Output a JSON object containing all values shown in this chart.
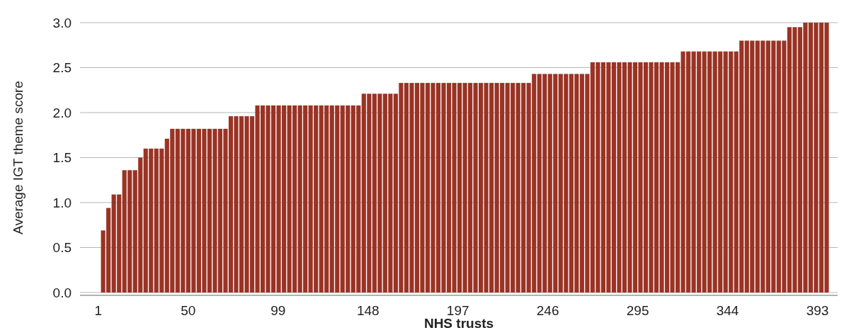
{
  "chart_data": {
    "type": "bar",
    "xlabel": "NHS trusts",
    "ylabel": "Average IGT theme score",
    "color": "#9a3324",
    "x": [
      3.6,
      6.5,
      9.4,
      12.3,
      15.2,
      18.1,
      21,
      23.9,
      26.8,
      29.7,
      32.6,
      35.5,
      38.4,
      41.3,
      44.2,
      47.1,
      50,
      52.9,
      55.8,
      58.7,
      61.6,
      64.5,
      67.4,
      70.3,
      73.2,
      76.1,
      79,
      81.9,
      84.8,
      87.7,
      90.6,
      93.5,
      96.4,
      99.3,
      102.2,
      105.1,
      108,
      110.9,
      113.8,
      116.7,
      119.6,
      122.5,
      125.4,
      128.3,
      131.2,
      134.1,
      137,
      139.9,
      142.8,
      145.7,
      148.6,
      151.5,
      154.4,
      157.3,
      160.2,
      163.1,
      166,
      168.9,
      171.8,
      174.7,
      177.6,
      180.5,
      183.4,
      186.3,
      189.2,
      192.1,
      195,
      197.9,
      200.8,
      203.7,
      206.6,
      209.5,
      212.4,
      215.3,
      218.2,
      221.1,
      224,
      226.9,
      229.8,
      232.7,
      235.6,
      238.5,
      241.4,
      244.3,
      247.2,
      250.1,
      253,
      255.9,
      258.8,
      261.7,
      264.6,
      267.5,
      270.4,
      273.3,
      276.2,
      279.1,
      282,
      284.9,
      287.8,
      290.7,
      293.6,
      296.5,
      299.4,
      302.3,
      305.2,
      308.1,
      311,
      313.9,
      316.8,
      319.7,
      322.6,
      325.5,
      328.4,
      331.3,
      334.2,
      337.1,
      340,
      342.9,
      345.8,
      348.7,
      351.6,
      354.5,
      357.4,
      360.3,
      363.2,
      366.1,
      369,
      371.9,
      374.8,
      377.7,
      380.6,
      383.5,
      386.4,
      389.3,
      392.2,
      395.1,
      398
    ],
    "values": [
      0.69,
      0.94,
      1.09,
      1.09,
      1.36,
      1.36,
      1.36,
      1.5,
      1.6,
      1.6,
      1.6,
      1.6,
      1.71,
      1.82,
      1.82,
      1.82,
      1.82,
      1.82,
      1.82,
      1.82,
      1.82,
      1.82,
      1.82,
      1.82,
      1.96,
      1.96,
      1.96,
      1.96,
      1.96,
      2.08,
      2.08,
      2.08,
      2.08,
      2.08,
      2.08,
      2.08,
      2.08,
      2.08,
      2.08,
      2.08,
      2.08,
      2.08,
      2.08,
      2.08,
      2.08,
      2.08,
      2.08,
      2.08,
      2.08,
      2.21,
      2.21,
      2.21,
      2.21,
      2.21,
      2.21,
      2.21,
      2.33,
      2.33,
      2.33,
      2.33,
      2.33,
      2.33,
      2.33,
      2.33,
      2.33,
      2.33,
      2.33,
      2.33,
      2.33,
      2.33,
      2.33,
      2.33,
      2.33,
      2.33,
      2.33,
      2.33,
      2.33,
      2.33,
      2.33,
      2.33,
      2.33,
      2.43,
      2.43,
      2.43,
      2.43,
      2.43,
      2.43,
      2.43,
      2.43,
      2.43,
      2.43,
      2.43,
      2.56,
      2.56,
      2.56,
      2.56,
      2.56,
      2.56,
      2.56,
      2.56,
      2.56,
      2.56,
      2.56,
      2.56,
      2.56,
      2.56,
      2.56,
      2.56,
      2.56,
      2.68,
      2.68,
      2.68,
      2.68,
      2.68,
      2.68,
      2.68,
      2.68,
      2.68,
      2.68,
      2.68,
      2.8,
      2.8,
      2.8,
      2.8,
      2.8,
      2.8,
      2.8,
      2.8,
      2.8,
      2.95,
      2.95,
      2.95,
      3.0,
      3.0,
      3.0,
      3.0,
      3.0
    ],
    "xlim": [
      -9,
      404
    ],
    "xticks": [
      1,
      50,
      99,
      148,
      197,
      246,
      295,
      344,
      393
    ],
    "ylim": [
      0,
      3
    ],
    "yticks": [
      {
        "value": 0,
        "label": "0.0"
      },
      {
        "value": 0.5,
        "label": "0.5"
      },
      {
        "value": 1,
        "label": "1.0"
      },
      {
        "value": 1.5,
        "label": "1.5"
      },
      {
        "value": 2,
        "label": "2.0"
      },
      {
        "value": 2.5,
        "label": "2.5"
      },
      {
        "value": 3,
        "label": "3.0"
      }
    ],
    "grid": "y"
  }
}
